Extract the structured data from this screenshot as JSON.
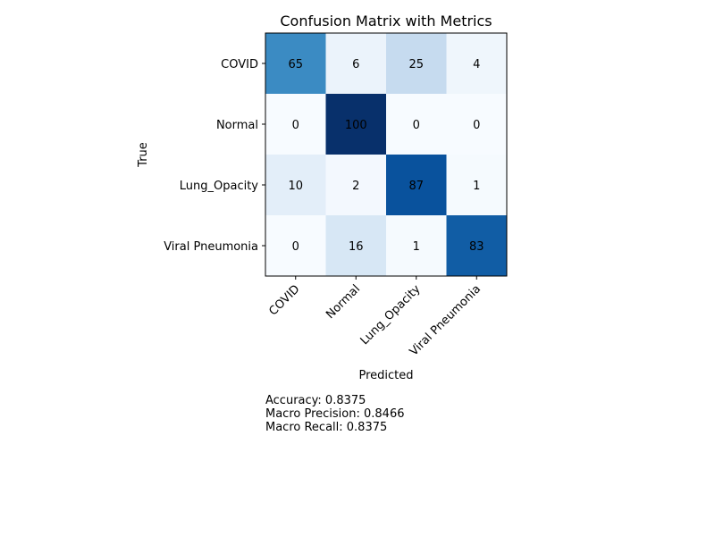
{
  "chart_data": {
    "type": "heatmap",
    "title": "Confusion Matrix with Metrics",
    "xlabel": "Predicted",
    "ylabel": "True",
    "x_categories": [
      "COVID",
      "Normal",
      "Lung_Opacity",
      "Viral Pneumonia"
    ],
    "y_categories": [
      "COVID",
      "Normal",
      "Lung_Opacity",
      "Viral Pneumonia"
    ],
    "matrix": [
      [
        65,
        6,
        25,
        4
      ],
      [
        0,
        100,
        0,
        0
      ],
      [
        10,
        2,
        87,
        1
      ],
      [
        0,
        16,
        1,
        83
      ]
    ],
    "value_range": [
      0,
      100
    ],
    "colormap": "Blues",
    "text_color_threshold": 50,
    "grid": false,
    "metrics": [
      "Accuracy: 0.8375",
      "Macro Precision: 0.8466",
      "Macro Recall: 0.8375"
    ]
  }
}
